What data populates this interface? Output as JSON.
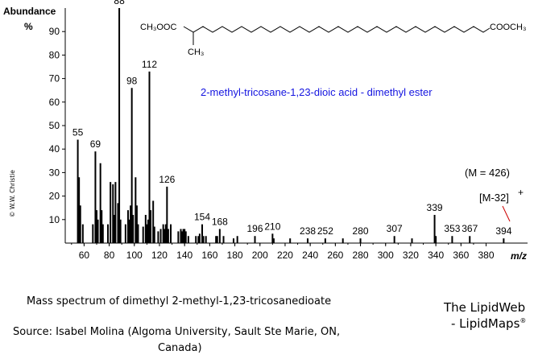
{
  "chart_data": {
    "type": "bar",
    "ylabel": "Abundance",
    "yunit": "%",
    "xlabel": "m/z",
    "xlim": [
      45,
      413
    ],
    "ylim": [
      0,
      100
    ],
    "xticks": [
      60,
      80,
      100,
      120,
      140,
      160,
      180,
      200,
      220,
      240,
      260,
      280,
      300,
      320,
      340,
      360,
      380
    ],
    "yticks": [
      10,
      20,
      30,
      40,
      50,
      60,
      70,
      80,
      90
    ],
    "peaks": [
      {
        "x": 55,
        "y": 44,
        "label": "55"
      },
      {
        "x": 56,
        "y": 28
      },
      {
        "x": 57,
        "y": 16
      },
      {
        "x": 59,
        "y": 8
      },
      {
        "x": 67,
        "y": 8
      },
      {
        "x": 69,
        "y": 39,
        "label": "69"
      },
      {
        "x": 70,
        "y": 14
      },
      {
        "x": 71,
        "y": 10
      },
      {
        "x": 73,
        "y": 34
      },
      {
        "x": 74,
        "y": 14
      },
      {
        "x": 75,
        "y": 8
      },
      {
        "x": 79,
        "y": 8
      },
      {
        "x": 81,
        "y": 26
      },
      {
        "x": 83,
        "y": 25
      },
      {
        "x": 84,
        "y": 12
      },
      {
        "x": 85,
        "y": 26
      },
      {
        "x": 87,
        "y": 17
      },
      {
        "x": 88,
        "y": 100,
        "label": "88"
      },
      {
        "x": 89,
        "y": 10
      },
      {
        "x": 93,
        "y": 8
      },
      {
        "x": 95,
        "y": 14
      },
      {
        "x": 96,
        "y": 10
      },
      {
        "x": 97,
        "y": 16
      },
      {
        "x": 98,
        "y": 66,
        "label": "98"
      },
      {
        "x": 99,
        "y": 12
      },
      {
        "x": 101,
        "y": 28
      },
      {
        "x": 102,
        "y": 16
      },
      {
        "x": 103,
        "y": 8
      },
      {
        "x": 107,
        "y": 7
      },
      {
        "x": 109,
        "y": 12
      },
      {
        "x": 110,
        "y": 8
      },
      {
        "x": 111,
        "y": 10
      },
      {
        "x": 112,
        "y": 73,
        "label": "112"
      },
      {
        "x": 113,
        "y": 14
      },
      {
        "x": 115,
        "y": 18
      },
      {
        "x": 116,
        "y": 7
      },
      {
        "x": 119,
        "y": 5
      },
      {
        "x": 121,
        "y": 6
      },
      {
        "x": 123,
        "y": 8
      },
      {
        "x": 124,
        "y": 6
      },
      {
        "x": 125,
        "y": 8
      },
      {
        "x": 126,
        "y": 24,
        "label": "126"
      },
      {
        "x": 127,
        "y": 6
      },
      {
        "x": 129,
        "y": 8
      },
      {
        "x": 135,
        "y": 5
      },
      {
        "x": 137,
        "y": 6
      },
      {
        "x": 138,
        "y": 5
      },
      {
        "x": 139,
        "y": 6
      },
      {
        "x": 140,
        "y": 6
      },
      {
        "x": 141,
        "y": 5
      },
      {
        "x": 143,
        "y": 3
      },
      {
        "x": 149,
        "y": 3
      },
      {
        "x": 151,
        "y": 3
      },
      {
        "x": 152,
        "y": 4
      },
      {
        "x": 154,
        "y": 8,
        "label": "154"
      },
      {
        "x": 155,
        "y": 3
      },
      {
        "x": 157,
        "y": 3
      },
      {
        "x": 165,
        "y": 3
      },
      {
        "x": 166,
        "y": 3
      },
      {
        "x": 168,
        "y": 6,
        "label": "168"
      },
      {
        "x": 171,
        "y": 3
      },
      {
        "x": 179,
        "y": 2
      },
      {
        "x": 182,
        "y": 3
      },
      {
        "x": 196,
        "y": 3,
        "label": "196"
      },
      {
        "x": 210,
        "y": 4,
        "label": "210"
      },
      {
        "x": 211,
        "y": 2
      },
      {
        "x": 224,
        "y": 2
      },
      {
        "x": 238,
        "y": 2,
        "label": "238"
      },
      {
        "x": 252,
        "y": 2,
        "label": "252"
      },
      {
        "x": 266,
        "y": 2
      },
      {
        "x": 280,
        "y": 2,
        "label": "280"
      },
      {
        "x": 307,
        "y": 3,
        "label": "307"
      },
      {
        "x": 321,
        "y": 2
      },
      {
        "x": 339,
        "y": 12,
        "label": "339"
      },
      {
        "x": 340,
        "y": 3
      },
      {
        "x": 353,
        "y": 3,
        "label": "353"
      },
      {
        "x": 367,
        "y": 3,
        "label": "367"
      },
      {
        "x": 394,
        "y": 2,
        "label": "394"
      }
    ]
  },
  "compound_name": "2-methyl-tricosane-1,23-dioic acid - dimethyl ester",
  "structure": {
    "left_group": "CH₃OOC",
    "right_group": "COOCH₃",
    "branch": "CH₃"
  },
  "molecular_ion": "(M = 426)",
  "fragment_label": "[M-32]",
  "fragment_superscript": "+",
  "copyright": "© W.W. Christie",
  "caption": "Mass spectrum of dimethyl 2-methyl-1,23-tricosanedioate",
  "source_line1": "Source: Isabel Molina (Algoma University, Sault Ste Marie, ON,",
  "source_line2": "Canada)",
  "brand_line1": "The LipidWeb",
  "brand_line2": "- LipidMaps",
  "brand_mark": "®",
  "colors": {
    "bars": "#000000",
    "compound_name": "#1515e0",
    "fragment_pointer": "#cc0000"
  }
}
